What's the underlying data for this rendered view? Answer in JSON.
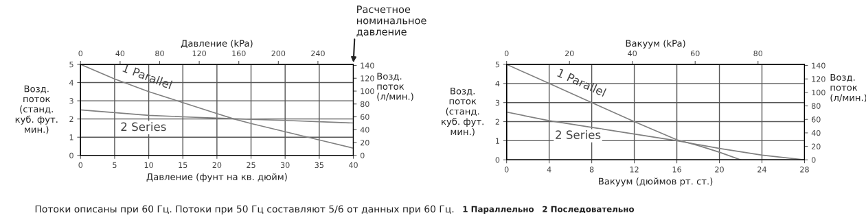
{
  "chart_data": [
    {
      "type": "line",
      "xlabel": "Давление (фунт на кв. дюйм)",
      "ylabel": "Возд.\nпоток\n(станд.\nкуб. фут.\nмин.)",
      "y2label": "Возд.\nпоток\n(л/мин.)",
      "x2label": "Давление (kPa)",
      "xlim": [
        0,
        40
      ],
      "xticks": [
        0,
        5,
        10,
        15,
        20,
        25,
        30,
        35,
        40
      ],
      "ylim": [
        0,
        5
      ],
      "yticks": [
        0,
        1,
        2,
        3,
        4,
        5
      ],
      "x2lim": [
        0,
        275.8
      ],
      "x2ticks": [
        0,
        40,
        80,
        120,
        160,
        200,
        240
      ],
      "y2lim": [
        0,
        141.6
      ],
      "y2ticks": [
        0,
        20,
        40,
        60,
        80,
        100,
        120,
        140
      ],
      "grid": true,
      "legend": false,
      "marker": "none",
      "line_style": "solid",
      "series": [
        {
          "name": "1 Parallel",
          "color": "#808080",
          "x": [
            0,
            5,
            10,
            15,
            20,
            22.5,
            25,
            30,
            35,
            40
          ],
          "values": [
            5,
            4.2,
            3.5,
            2.9,
            2.3,
            2.0,
            1.75,
            1.3,
            0.85,
            0.4
          ]
        },
        {
          "name": "2 Series",
          "color": "#808080",
          "x": [
            0,
            5,
            10,
            15,
            20,
            25,
            30,
            35,
            40
          ],
          "values": [
            2.5,
            2.35,
            2.2,
            2.12,
            2.05,
            1.98,
            1.92,
            1.85,
            1.78
          ]
        }
      ],
      "annotations": [
        "Расчетное\nноминальное\nдавление",
        "Потоки описаны при 60 Гц. Потоки при 50 Гц составляют 5/6 от данных при 60 Гц.",
        "1 Параллельно",
        "2 Последовательно"
      ]
    },
    {
      "type": "line",
      "xlabel": "Вакуум (дюймов рт. ст.)",
      "ylabel": "Возд.\nпоток\n(станд.\nкуб. фут.\nмин.)",
      "y2label": "Возд.\nпоток\n(л/мин.)",
      "x2label": "Вакуум (kPa)",
      "xlim": [
        0,
        28
      ],
      "xticks": [
        0,
        4,
        8,
        12,
        16,
        20,
        24,
        28
      ],
      "ylim": [
        0,
        5
      ],
      "yticks": [
        0,
        1,
        2,
        3,
        4,
        5
      ],
      "x2lim": [
        0,
        94.8
      ],
      "x2ticks": [
        0,
        20,
        40,
        60,
        80
      ],
      "y2lim": [
        0,
        141.6
      ],
      "y2ticks": [
        0,
        20,
        40,
        60,
        80,
        100,
        120,
        140
      ],
      "grid": true,
      "legend": false,
      "marker": "none",
      "line_style": "solid",
      "series": [
        {
          "name": "1 Parallel",
          "color": "#808080",
          "x": [
            0,
            4,
            8,
            12,
            16,
            18,
            20,
            22
          ],
          "values": [
            5,
            4,
            3,
            2,
            1.05,
            0.75,
            0.4,
            0
          ]
        },
        {
          "name": "2 Series",
          "color": "#808080",
          "x": [
            0,
            4,
            8,
            12,
            16,
            20,
            24,
            28
          ],
          "values": [
            2.5,
            2.05,
            1.7,
            1.35,
            1.0,
            0.6,
            0.25,
            0
          ]
        }
      ]
    }
  ]
}
